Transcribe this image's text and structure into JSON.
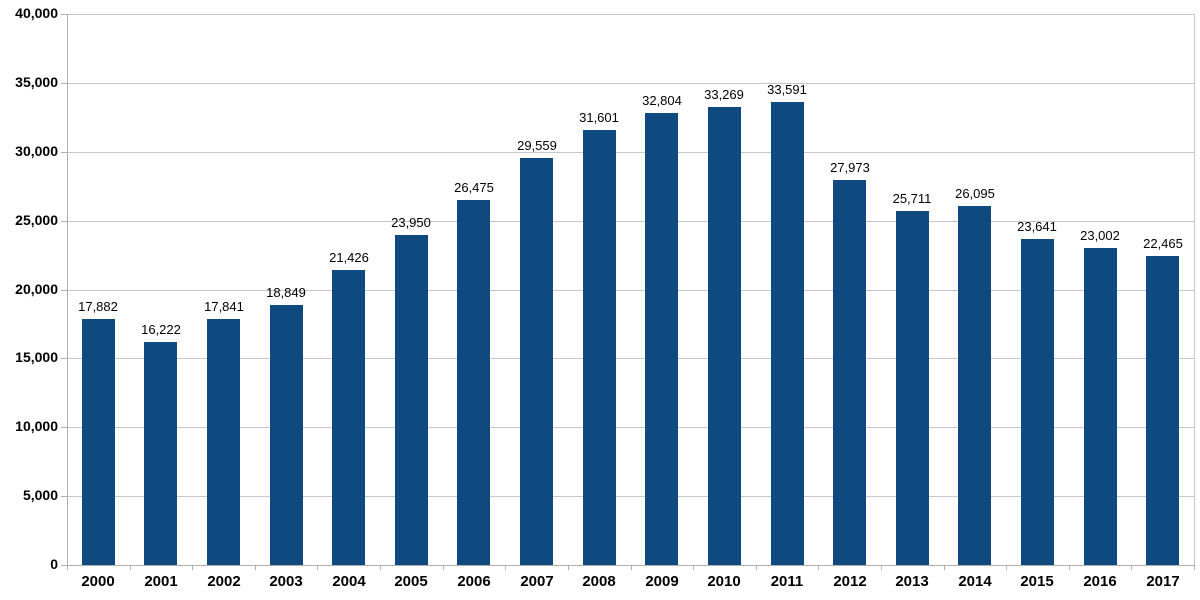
{
  "chart_data": {
    "type": "bar",
    "title": "",
    "xlabel": "",
    "ylabel": "",
    "categories": [
      "2000",
      "2001",
      "2002",
      "2003",
      "2004",
      "2005",
      "2006",
      "2007",
      "2008",
      "2009",
      "2010",
      "2011",
      "2012",
      "2013",
      "2014",
      "2015",
      "2016",
      "2017"
    ],
    "values": [
      17882,
      16222,
      17841,
      18849,
      21426,
      23950,
      26475,
      29559,
      31601,
      32804,
      33269,
      33591,
      27973,
      25711,
      26095,
      23641,
      23002,
      22465
    ],
    "value_labels": [
      "17,882",
      "16,222",
      "17,841",
      "18,849",
      "21,426",
      "23,950",
      "26,475",
      "29,559",
      "31,601",
      "32,804",
      "33,269",
      "33,591",
      "27,973",
      "25,711",
      "26,095",
      "23,641",
      "23,002",
      "22,465"
    ],
    "ylim": [
      0,
      40000
    ],
    "y_tick_step": 5000,
    "y_ticks": [
      0,
      5000,
      10000,
      15000,
      20000,
      25000,
      30000,
      35000,
      40000
    ],
    "y_tick_labels": [
      "0",
      "5,000",
      "10,000",
      "15,000",
      "20,000",
      "25,000",
      "30,000",
      "35,000",
      "40,000"
    ],
    "grid": "horizontal-on",
    "legend_position": "none",
    "colors": {
      "bar": "#0e4a7f",
      "gridline": "#c6c6c6",
      "axis": "#aeaeae",
      "label": "#000000",
      "background": "#ffffff"
    }
  }
}
